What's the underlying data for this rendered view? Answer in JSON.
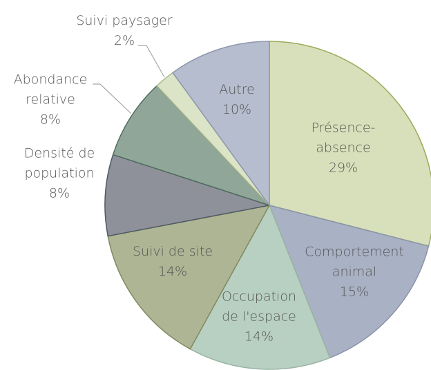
{
  "chart_data": {
    "type": "pie",
    "categories": [
      "Présence-absence",
      "Comportement animal",
      "Occupation de l'espace",
      "Suivi de site",
      "Densité de population",
      "Abondance relative",
      "Suivi paysager",
      "Autre"
    ],
    "values": [
      29,
      15,
      14,
      14,
      8,
      8,
      2,
      10
    ],
    "value_labels": [
      "29%",
      "15%",
      "14%",
      "14%",
      "8%",
      "8%",
      "2%",
      "10%"
    ],
    "colors": [
      "#d7e0ba",
      "#a9b2c4",
      "#b8d0c1",
      "#aeb594",
      "#8e919a",
      "#8fa698",
      "#dbe4c6",
      "#b6bdce"
    ]
  }
}
